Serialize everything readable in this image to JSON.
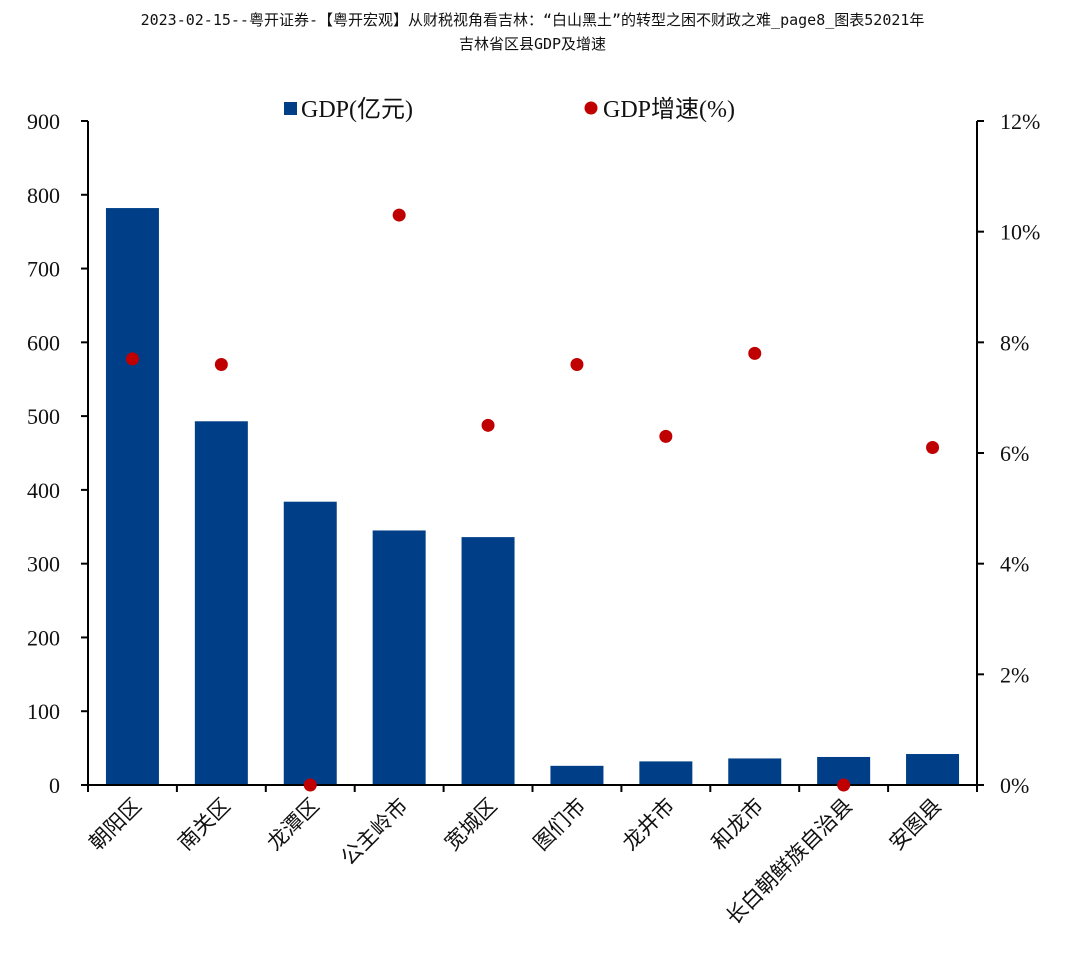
{
  "title": {
    "line1": "2023-02-15--粤开证券-【粤开宏观】从财税视角看吉林：“白山黑土”的转型之困不财政之难_page8_图表52021年",
    "line2": "吉林省区县GDP及增速"
  },
  "colors": {
    "bar": "#003f87",
    "dot": "#c00000",
    "axis": "#000000"
  },
  "chart_data": {
    "type": "bar",
    "categories": [
      "朝阳区",
      "南关区",
      "龙潭区",
      "公主岭市",
      "宽城区",
      "图们市",
      "龙井市",
      "和龙市",
      "长白朝鲜族自治县",
      "安图县"
    ],
    "series": [
      {
        "name": "GDP(亿元)",
        "type": "bar",
        "axis": "left",
        "values": [
          782,
          493,
          384,
          345,
          336,
          26,
          32,
          36,
          38,
          42
        ]
      },
      {
        "name": "GDP增速(%)",
        "type": "scatter",
        "axis": "right",
        "values": [
          7.7,
          7.6,
          0.0,
          10.3,
          6.5,
          7.6,
          6.3,
          7.8,
          0.0,
          6.1
        ]
      }
    ],
    "y_left": {
      "min": 0,
      "max": 900,
      "ticks": [
        "0",
        "100",
        "200",
        "300",
        "400",
        "500",
        "600",
        "700",
        "800",
        "900"
      ]
    },
    "y_right": {
      "min": 0,
      "max": 12,
      "ticks": [
        "0%",
        "2%",
        "4%",
        "6%",
        "8%",
        "10%",
        "12%"
      ]
    },
    "legend_position": "top",
    "grid": false
  }
}
